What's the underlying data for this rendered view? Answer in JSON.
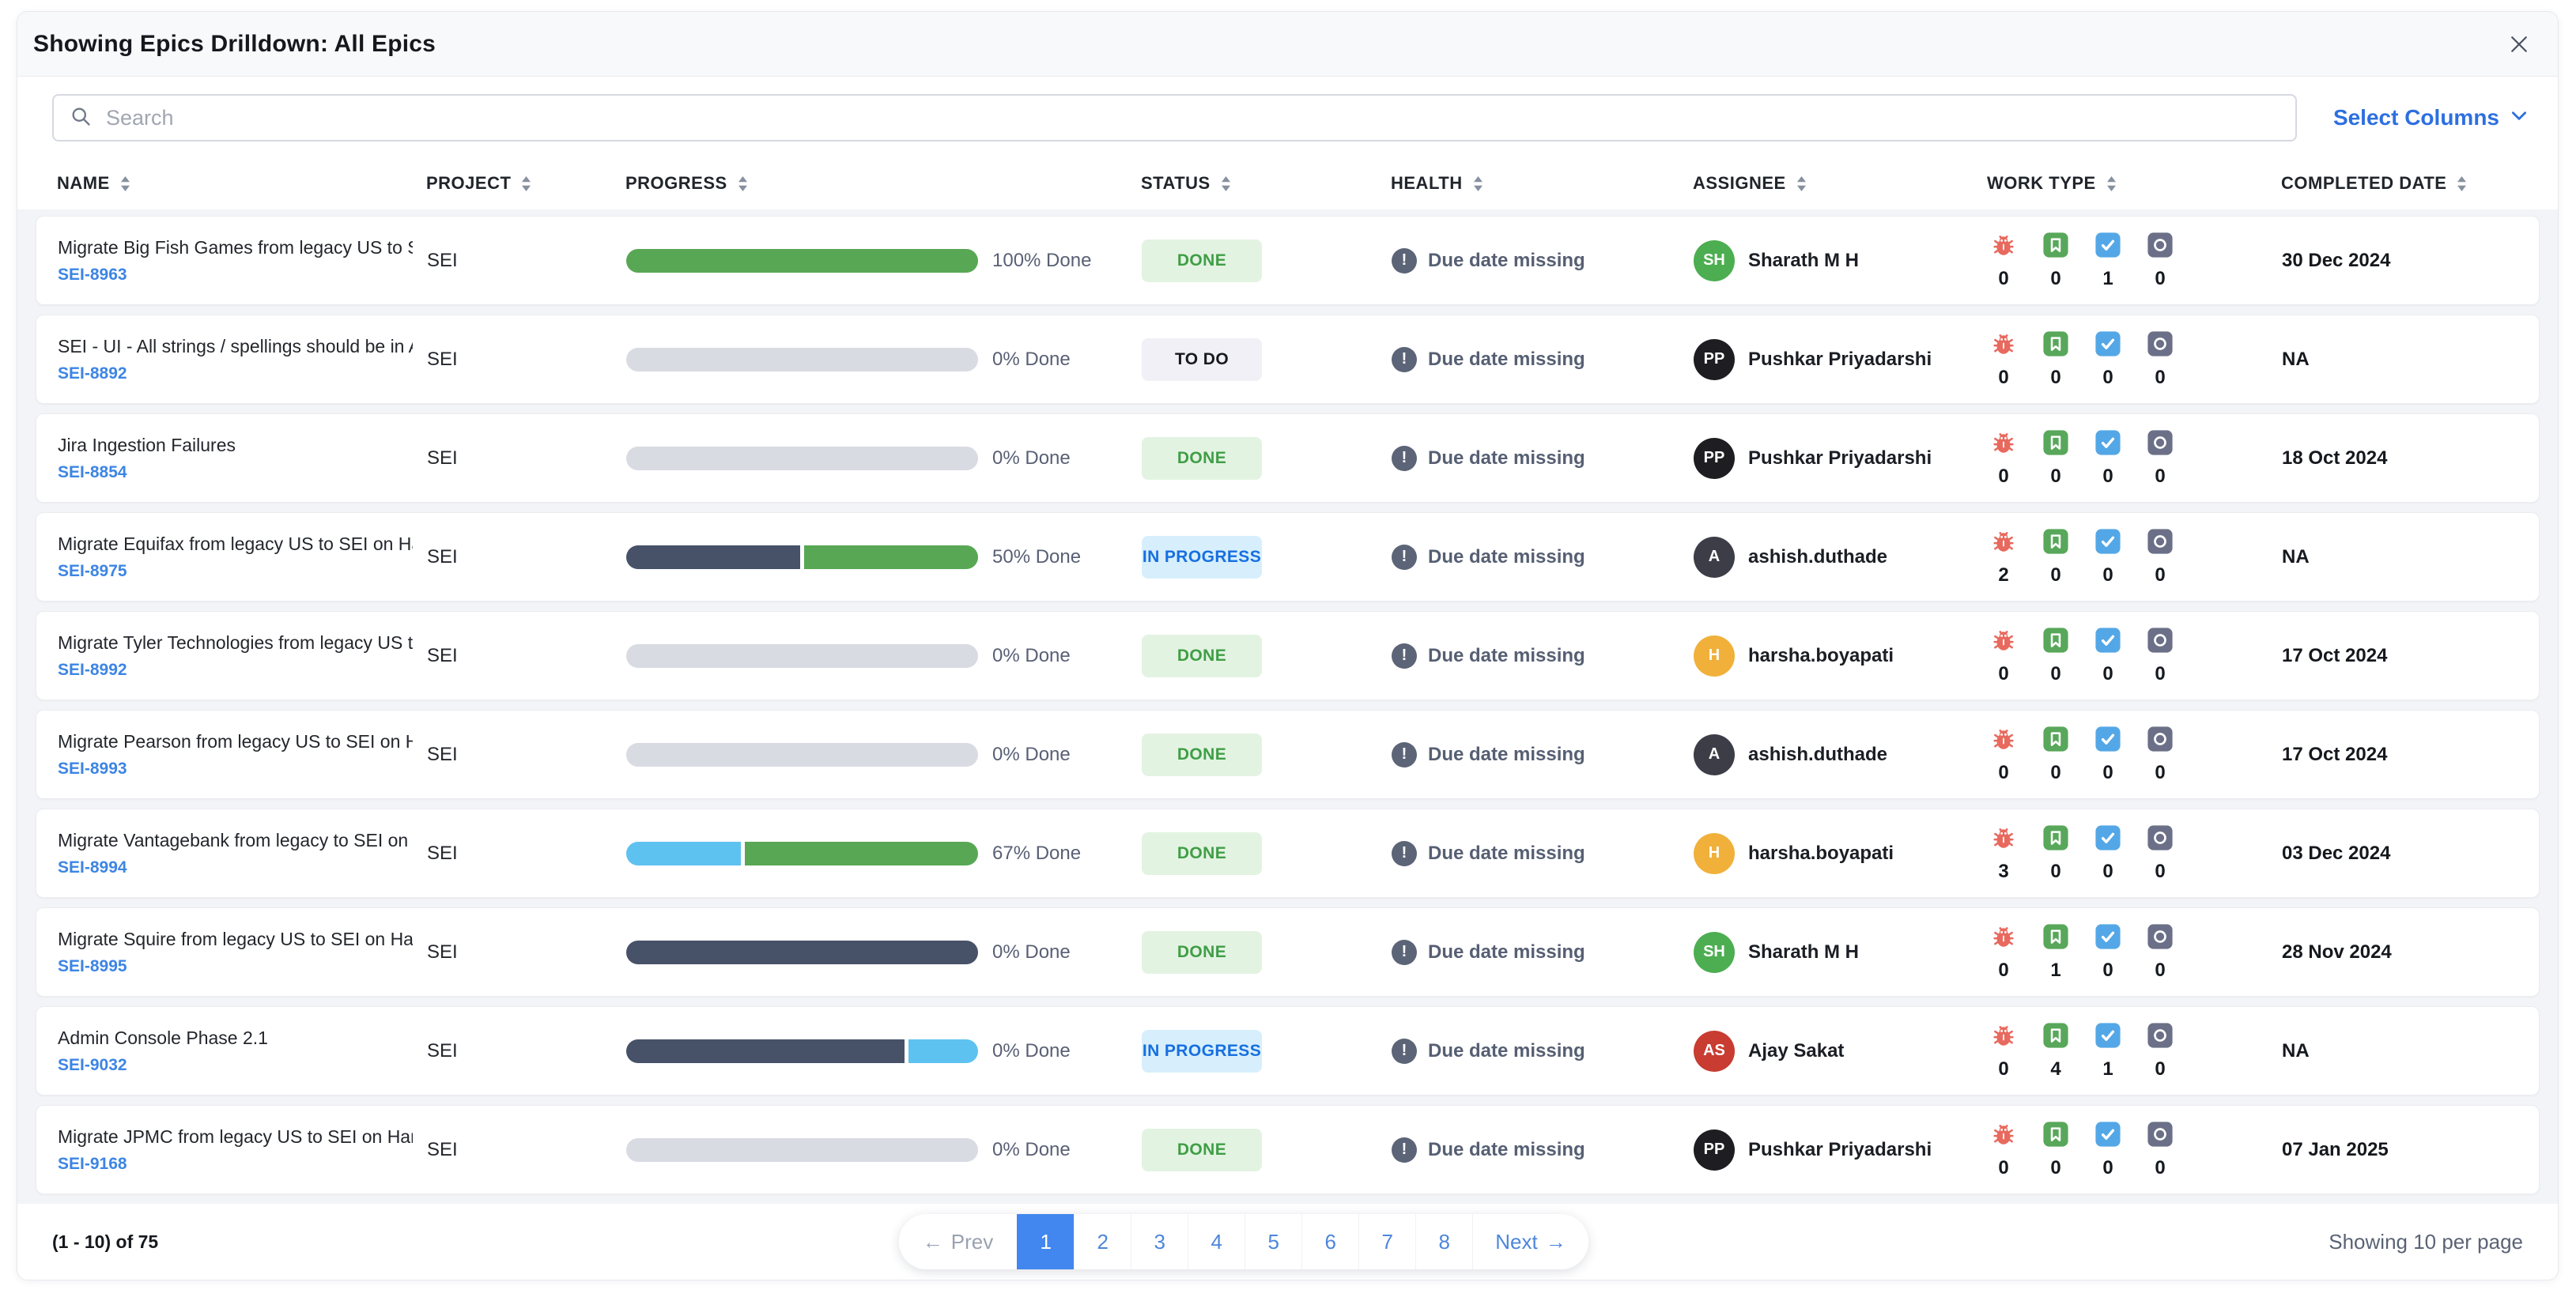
{
  "panel": {
    "title": "Showing Epics Drilldown: All Epics",
    "search": {
      "placeholder": "Search"
    },
    "select_columns_label": "Select Columns",
    "columns": [
      {
        "key": "name",
        "label": "NAME"
      },
      {
        "key": "project",
        "label": "PROJECT"
      },
      {
        "key": "progress",
        "label": "PROGRESS"
      },
      {
        "key": "status",
        "label": "STATUS"
      },
      {
        "key": "health",
        "label": "HEALTH"
      },
      {
        "key": "assignee",
        "label": "ASSIGNEE"
      },
      {
        "key": "worktype",
        "label": "WORK TYPE"
      },
      {
        "key": "completed",
        "label": "COMPLETED DATE"
      }
    ],
    "worktype_icons": [
      "bug-icon",
      "story-icon",
      "task-icon",
      "other-icon"
    ],
    "rows": [
      {
        "name": "Migrate Big Fish Games from legacy US to SEI ...",
        "id": "SEI-8963",
        "project": "SEI",
        "progress": {
          "label": "100% Done",
          "segments": [
            {
              "color": "green",
              "pct": 100
            }
          ]
        },
        "status": {
          "label": "DONE",
          "type": "done"
        },
        "health": "Due date missing",
        "assignee": {
          "initials": "SH",
          "name": "Sharath M H",
          "color": "green"
        },
        "work_counts": [
          0,
          0,
          1,
          0
        ],
        "completed": "30 Dec 2024"
      },
      {
        "name": "SEI - UI - All strings / spellings should be in A...",
        "id": "SEI-8892",
        "project": "SEI",
        "progress": {
          "label": "0% Done",
          "segments": [
            {
              "color": "gray",
              "pct": 100
            }
          ]
        },
        "status": {
          "label": "TO DO",
          "type": "todo"
        },
        "health": "Due date missing",
        "assignee": {
          "initials": "PP",
          "name": "Pushkar Priyadarshi",
          "color": "black"
        },
        "work_counts": [
          0,
          0,
          0,
          0
        ],
        "completed": "NA"
      },
      {
        "name": "Jira Ingestion Failures",
        "id": "SEI-8854",
        "project": "SEI",
        "progress": {
          "label": "0% Done",
          "segments": [
            {
              "color": "gray",
              "pct": 100
            }
          ]
        },
        "status": {
          "label": "DONE",
          "type": "done"
        },
        "health": "Due date missing",
        "assignee": {
          "initials": "PP",
          "name": "Pushkar Priyadarshi",
          "color": "black"
        },
        "work_counts": [
          0,
          0,
          0,
          0
        ],
        "completed": "18 Oct 2024"
      },
      {
        "name": "Migrate Equifax from legacy US to SEI on Harn...",
        "id": "SEI-8975",
        "project": "SEI",
        "progress": {
          "label": "50% Done",
          "segments": [
            {
              "color": "dark",
              "pct": 50
            },
            {
              "color": "green",
              "pct": 50
            }
          ]
        },
        "status": {
          "label": "IN PROGRESS",
          "type": "inprogress"
        },
        "health": "Due date missing",
        "assignee": {
          "initials": "A",
          "name": "ashish.duthade",
          "color": "slate"
        },
        "work_counts": [
          2,
          0,
          0,
          0
        ],
        "completed": "NA"
      },
      {
        "name": "Migrate Tyler Technologies from legacy US to ...",
        "id": "SEI-8992",
        "project": "SEI",
        "progress": {
          "label": "0% Done",
          "segments": [
            {
              "color": "gray",
              "pct": 100
            }
          ]
        },
        "status": {
          "label": "DONE",
          "type": "done"
        },
        "health": "Due date missing",
        "assignee": {
          "initials": "H",
          "name": "harsha.boyapati",
          "color": "amber"
        },
        "work_counts": [
          0,
          0,
          0,
          0
        ],
        "completed": "17 Oct 2024"
      },
      {
        "name": "Migrate Pearson from legacy US to SEI on Har...",
        "id": "SEI-8993",
        "project": "SEI",
        "progress": {
          "label": "0% Done",
          "segments": [
            {
              "color": "gray",
              "pct": 100
            }
          ]
        },
        "status": {
          "label": "DONE",
          "type": "done"
        },
        "health": "Due date missing",
        "assignee": {
          "initials": "A",
          "name": "ashish.duthade",
          "color": "slate"
        },
        "work_counts": [
          0,
          0,
          0,
          0
        ],
        "completed": "17 Oct 2024"
      },
      {
        "name": "Migrate Vantagebank from legacy to SEI on Ha...",
        "id": "SEI-8994",
        "project": "SEI",
        "progress": {
          "label": "67% Done",
          "segments": [
            {
              "color": "blue",
              "pct": 33
            },
            {
              "color": "green",
              "pct": 67
            }
          ]
        },
        "status": {
          "label": "DONE",
          "type": "done"
        },
        "health": "Due date missing",
        "assignee": {
          "initials": "H",
          "name": "harsha.boyapati",
          "color": "amber"
        },
        "work_counts": [
          3,
          0,
          0,
          0
        ],
        "completed": "03 Dec 2024"
      },
      {
        "name": "Migrate Squire from legacy US to SEI on Harne...",
        "id": "SEI-8995",
        "project": "SEI",
        "progress": {
          "label": "0% Done",
          "segments": [
            {
              "color": "dark",
              "pct": 100
            }
          ]
        },
        "status": {
          "label": "DONE",
          "type": "done"
        },
        "health": "Due date missing",
        "assignee": {
          "initials": "SH",
          "name": "Sharath M H",
          "color": "green"
        },
        "work_counts": [
          0,
          1,
          0,
          0
        ],
        "completed": "28 Nov 2024"
      },
      {
        "name": "Admin Console Phase 2.1",
        "id": "SEI-9032",
        "project": "SEI",
        "progress": {
          "label": "0% Done",
          "segments": [
            {
              "color": "dark",
              "pct": 80
            },
            {
              "color": "blue",
              "pct": 20
            }
          ]
        },
        "status": {
          "label": "IN PROGRESS",
          "type": "inprogress"
        },
        "health": "Due date missing",
        "assignee": {
          "initials": "AS",
          "name": "Ajay Sakat",
          "color": "red"
        },
        "work_counts": [
          0,
          4,
          1,
          0
        ],
        "completed": "NA"
      },
      {
        "name": "Migrate JPMC from legacy US to SEI on Harne...",
        "id": "SEI-9168",
        "project": "SEI",
        "progress": {
          "label": "0% Done",
          "segments": [
            {
              "color": "gray",
              "pct": 100
            }
          ]
        },
        "status": {
          "label": "DONE",
          "type": "done"
        },
        "health": "Due date missing",
        "assignee": {
          "initials": "PP",
          "name": "Pushkar Priyadarshi",
          "color": "black"
        },
        "work_counts": [
          0,
          0,
          0,
          0
        ],
        "completed": "07 Jan 2025"
      }
    ],
    "footer": {
      "range_label": "(1 - 10) of 75",
      "prev_arrow": "←",
      "prev_label": "Prev",
      "pages": [
        "1",
        "2",
        "3",
        "4",
        "5",
        "6",
        "7",
        "8"
      ],
      "active_page": "1",
      "next_label": "Next",
      "next_arrow": "→",
      "per_page_label": "Showing 10 per page"
    },
    "colors": {
      "accent_blue": "#2d6fe0",
      "link_blue": "#3d85e4",
      "pagination_active": "#4287ef",
      "progress": {
        "green": "#58a754",
        "gray": "#d9dbe3",
        "dark": "#475269",
        "blue": "#5ec2f0"
      },
      "status": {
        "done": {
          "bg": "#e3f3e2",
          "fg": "#3f9e45"
        },
        "todo": {
          "bg": "#f0f0f6",
          "fg": "#17191d"
        },
        "inprogress": {
          "bg": "#d7effc",
          "fg": "#176fe0"
        }
      },
      "avatar": {
        "green": "#4cae50",
        "black": "#1e1e22",
        "slate": "#3d3d47",
        "amber": "#f0b03a",
        "red": "#c83c31"
      },
      "worktype": {
        "bug": "#e8695e",
        "story": "#58a75a",
        "task": "#54a7e6",
        "other": "#6b7088"
      },
      "health_icon": "#5c6477"
    }
  }
}
